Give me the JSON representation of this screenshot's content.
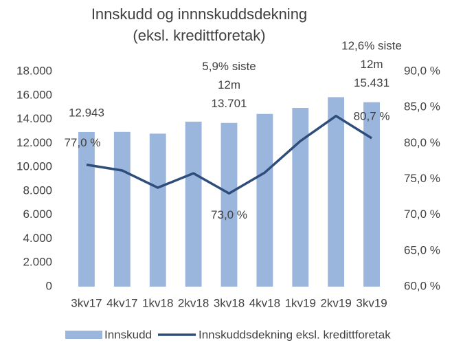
{
  "chart_data": {
    "type": "bar",
    "title": [
      "Innskudd og innnskuddsdekning",
      "(eksl. kredittforetak)"
    ],
    "categories": [
      "3kv17",
      "4kv17",
      "1kv18",
      "2kv18",
      "3kv18",
      "4kv18",
      "1kv19",
      "2kv19",
      "3kv19"
    ],
    "series": [
      {
        "name": "Innskudd",
        "type": "bar",
        "color": "#9bb6dc",
        "values": [
          12943,
          12950,
          12800,
          13800,
          13701,
          14450,
          14950,
          15850,
          15431
        ],
        "value_labels": [
          "12.943",
          null,
          null,
          null,
          "13.701",
          null,
          null,
          null,
          "15.431"
        ]
      },
      {
        "name": "Innskuddsdekning eksl. kredittforetak",
        "type": "line",
        "axis": "y2",
        "color": "#2e4d7b",
        "values": [
          77.0,
          76.2,
          73.8,
          75.8,
          73.0,
          75.9,
          80.3,
          83.8,
          80.7
        ],
        "value_labels": [
          "77,0 %",
          null,
          null,
          null,
          "73,0 %",
          null,
          null,
          null,
          "80,7 %"
        ]
      }
    ],
    "annotations": [
      [
        "5,9% siste",
        "12m"
      ],
      [
        "12,6% siste",
        "12m"
      ]
    ],
    "ylim": [
      0,
      18000
    ],
    "yticks": [
      0,
      {
        "value": 2000,
        "label": "2.000"
      },
      {
        "value": 4000,
        "label": "4.000"
      },
      {
        "value": 6000,
        "label": "6.000"
      },
      {
        "value": 8000,
        "label": "8.000"
      },
      {
        "value": 10000,
        "label": "10.000"
      },
      {
        "value": 12000,
        "label": "12.000"
      },
      {
        "value": 14000,
        "label": "14.000"
      },
      {
        "value": 16000,
        "label": "16.000"
      },
      {
        "value": 18000,
        "label": "18.000"
      }
    ],
    "y2lim": [
      60,
      90
    ],
    "y2ticks": [
      {
        "value": 60,
        "label": "60,0 %"
      },
      {
        "value": 65,
        "label": "65,0 %"
      },
      {
        "value": 70,
        "label": "70,0 %"
      },
      {
        "value": 75,
        "label": "75,0 %"
      },
      {
        "value": 80,
        "label": "80,0 %"
      },
      {
        "value": 85,
        "label": "85,0 %"
      },
      {
        "value": 90,
        "label": "90,0 %"
      }
    ],
    "legend": "bottom"
  }
}
